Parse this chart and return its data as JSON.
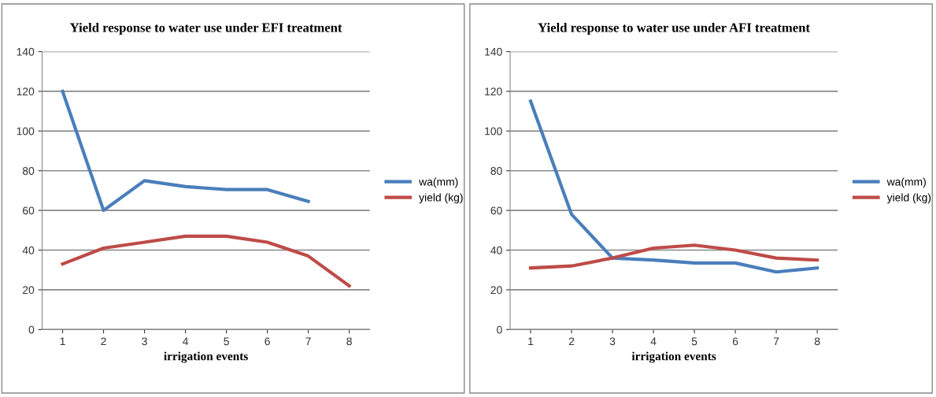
{
  "chart_data": [
    {
      "type": "line",
      "title": "Yield response to water use under EFI treatment",
      "xlabel": "irrigation events",
      "categories": [
        "1",
        "2",
        "3",
        "4",
        "5",
        "6",
        "7",
        "8"
      ],
      "series": [
        {
          "name": "wa(mm)",
          "color": "#4a7ebb",
          "values": [
            120,
            60,
            75,
            72,
            70.5,
            70.5,
            64.5,
            null
          ]
        },
        {
          "name": "yield (kg)",
          "color": "#be4b48",
          "values": [
            33,
            41,
            44,
            47,
            47,
            44,
            37,
            22
          ]
        }
      ],
      "ylim": [
        0,
        140
      ],
      "yticks": [
        0,
        20,
        40,
        60,
        80,
        100,
        120,
        140
      ],
      "grid": "y",
      "legend": "right",
      "marker": "none",
      "line_style": "solid"
    },
    {
      "type": "line",
      "title": "Yield response to water use under AFI treatment",
      "xlabel": "irrigation events",
      "categories": [
        "1",
        "2",
        "3",
        "4",
        "5",
        "6",
        "7",
        "8"
      ],
      "series": [
        {
          "name": "wa(mm)",
          "color": "#4a7ebb",
          "values": [
            115,
            58,
            36,
            35,
            33.5,
            33.5,
            29,
            31
          ]
        },
        {
          "name": "yield (kg)",
          "color": "#be4b48",
          "values": [
            31,
            32,
            36,
            41,
            42.5,
            40,
            36,
            35
          ]
        }
      ],
      "ylim": [
        0,
        140
      ],
      "yticks": [
        0,
        20,
        40,
        60,
        80,
        100,
        120,
        140
      ],
      "grid": "y",
      "legend": "right",
      "marker": "none",
      "line_style": "solid"
    }
  ]
}
